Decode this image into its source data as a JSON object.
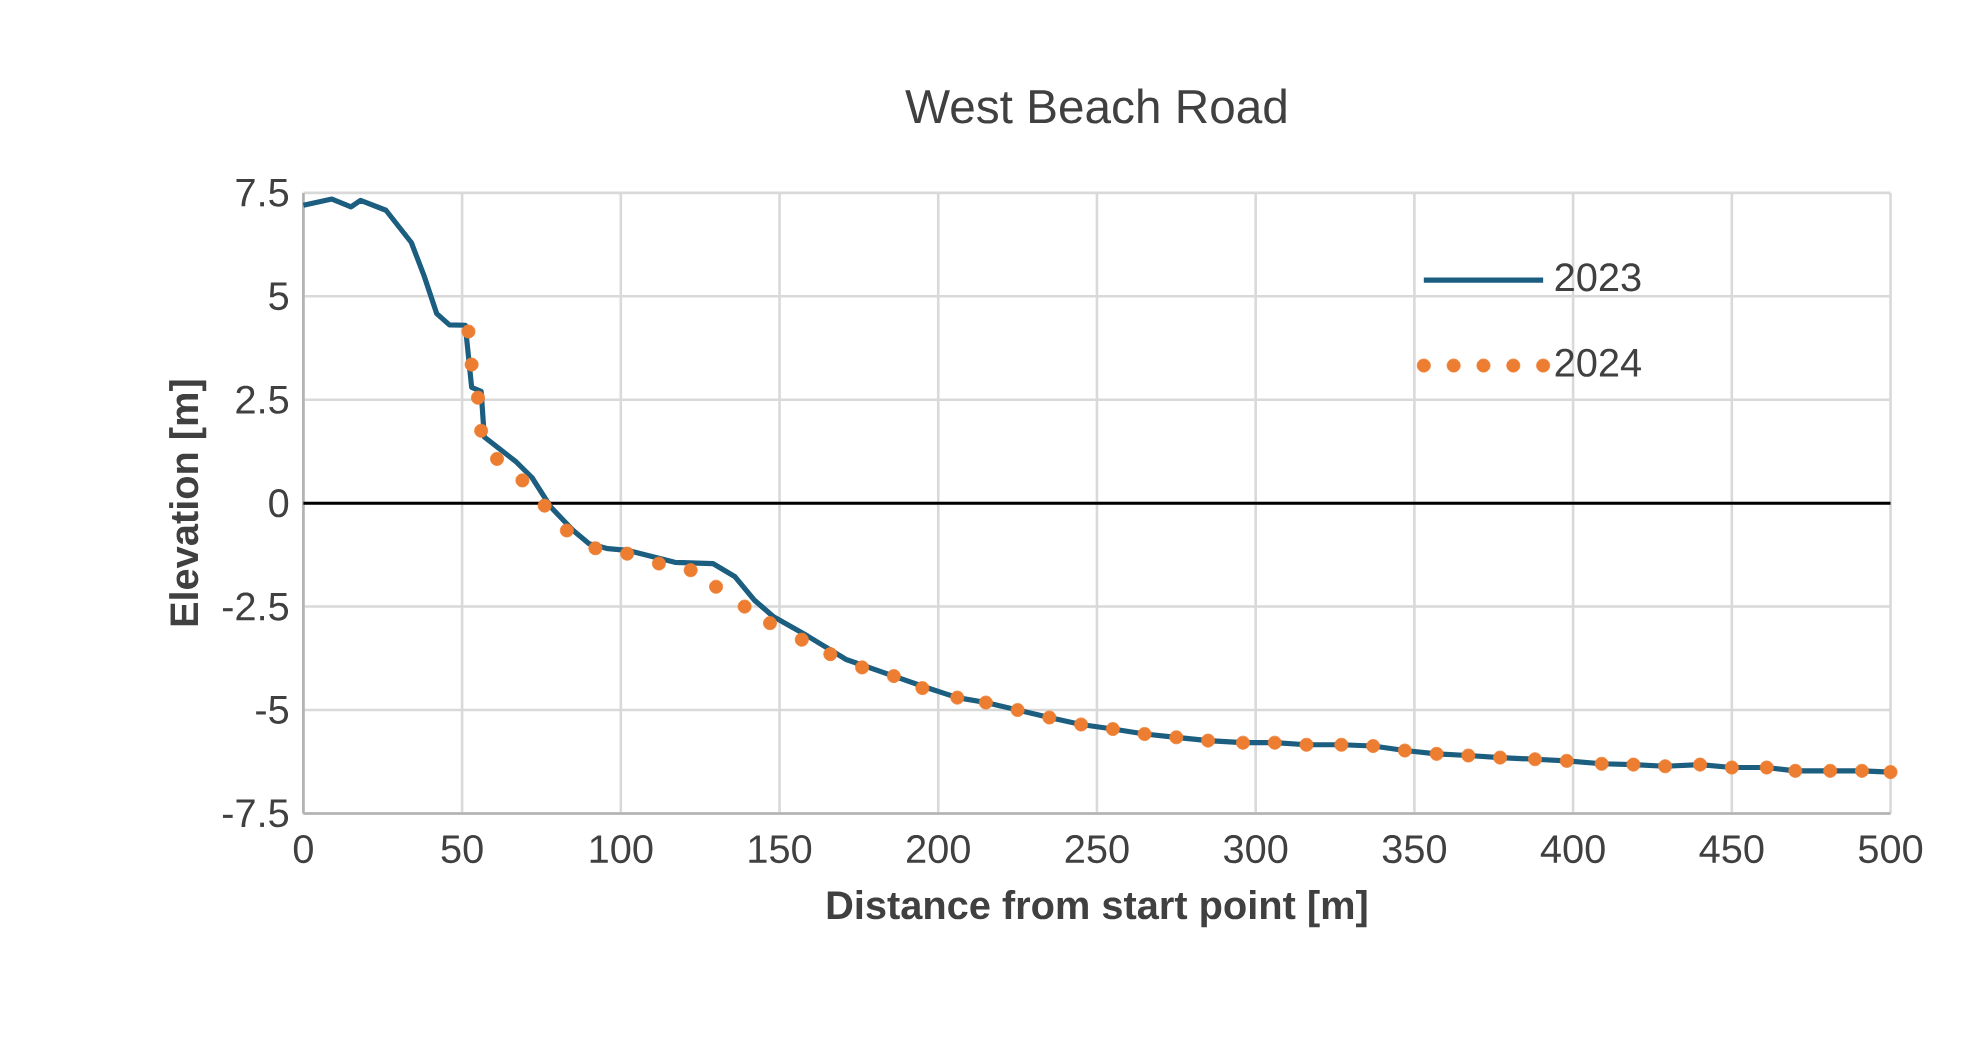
{
  "chart_data": {
    "type": "line",
    "title": "West Beach Road",
    "xlabel": "Distance from start point [m]",
    "ylabel": "Elevation [m]",
    "xlim": [
      0,
      500
    ],
    "xticks": [
      0,
      50,
      100,
      150,
      200,
      250,
      300,
      350,
      400,
      450,
      500
    ],
    "ylim": [
      -7.5,
      7.5
    ],
    "yticks": [
      -7.5,
      -5,
      -2.5,
      0,
      2.5,
      5,
      7.5
    ],
    "grid": true,
    "legend": "top right",
    "ref_lines": [
      {
        "axis": "y",
        "value": 0,
        "color": "#000000"
      }
    ],
    "series": [
      {
        "name": "2023",
        "color": "#1b5e80",
        "marker": "none",
        "line_style": "solid",
        "x": [
          0,
          9,
          15,
          18,
          26,
          34,
          38,
          42,
          46,
          51,
          53,
          56,
          57,
          67,
          72,
          78,
          85,
          90,
          96,
          102,
          117,
          129,
          136,
          142,
          148,
          159,
          171,
          186,
          196,
          206,
          215,
          225,
          235,
          245,
          255,
          265,
          275,
          285,
          296,
          306,
          316,
          327,
          337,
          347,
          357,
          367,
          377,
          388,
          398,
          409,
          419,
          429,
          440,
          450,
          461,
          470,
          481,
          491,
          500
        ],
        "values": [
          7.2,
          7.35,
          7.16,
          7.32,
          7.08,
          6.3,
          5.5,
          4.58,
          4.31,
          4.3,
          2.8,
          2.7,
          1.6,
          1.0,
          0.62,
          -0.1,
          -0.66,
          -0.98,
          -1.1,
          -1.14,
          -1.43,
          -1.46,
          -1.78,
          -2.34,
          -2.74,
          -3.22,
          -3.78,
          -4.18,
          -4.45,
          -4.7,
          -4.82,
          -5.0,
          -5.18,
          -5.35,
          -5.46,
          -5.58,
          -5.66,
          -5.74,
          -5.79,
          -5.79,
          -5.84,
          -5.84,
          -5.87,
          -5.98,
          -6.06,
          -6.1,
          -6.15,
          -6.19,
          -6.23,
          -6.3,
          -6.32,
          -6.36,
          -6.32,
          -6.39,
          -6.39,
          -6.47,
          -6.47,
          -6.47,
          -6.5
        ]
      },
      {
        "name": "2024",
        "type": "scatter",
        "color": "#ed7d31",
        "marker": "circle",
        "x": [
          52,
          53,
          55,
          56,
          61,
          69,
          76,
          83,
          92,
          102,
          112,
          122,
          130,
          139,
          147,
          157,
          166,
          176,
          186,
          195,
          206,
          215,
          225,
          235,
          245,
          255,
          265,
          275,
          285,
          296,
          306,
          316,
          327,
          337,
          347,
          357,
          367,
          377,
          388,
          398,
          409,
          419,
          429,
          440,
          450,
          461,
          470,
          481,
          491,
          500
        ],
        "values": [
          4.15,
          3.35,
          2.55,
          1.75,
          1.07,
          0.55,
          -0.06,
          -0.66,
          -1.09,
          -1.22,
          -1.46,
          -1.62,
          -2.02,
          -2.5,
          -2.9,
          -3.3,
          -3.65,
          -3.97,
          -4.18,
          -4.47,
          -4.7,
          -4.82,
          -5.0,
          -5.18,
          -5.35,
          -5.46,
          -5.58,
          -5.66,
          -5.74,
          -5.79,
          -5.79,
          -5.84,
          -5.84,
          -5.87,
          -5.98,
          -6.06,
          -6.1,
          -6.15,
          -6.19,
          -6.23,
          -6.3,
          -6.32,
          -6.36,
          -6.32,
          -6.39,
          -6.39,
          -6.47,
          -6.47,
          -6.47,
          -6.5
        ]
      }
    ]
  }
}
